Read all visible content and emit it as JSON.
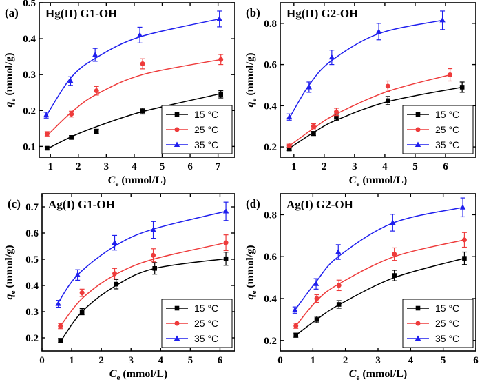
{
  "chart_data": [
    {
      "type": "scatter",
      "panel_label": "(a)",
      "title": "Hg(II) G1-OH",
      "xlabel_main": "C",
      "xlabel_sub": "e",
      "xlabel_unit": " (mmol/L)",
      "ylabel_main": "q",
      "ylabel_sub": "e",
      "ylabel_unit": " (mmol/g)",
      "xlim": [
        0.6,
        7.6
      ],
      "ylim": [
        0.07,
        0.5
      ],
      "xticks": [
        1,
        2,
        3,
        4,
        5,
        6,
        7
      ],
      "yticks": [
        0.1,
        0.2,
        0.3,
        0.4,
        0.5
      ],
      "series": [
        {
          "name": "15 °C",
          "color": "#000000",
          "marker": "square",
          "x": [
            0.88,
            1.75,
            2.65,
            4.3,
            7.1
          ],
          "y": [
            0.095,
            0.125,
            0.142,
            0.198,
            0.245
          ],
          "err": [
            0.004,
            0.005,
            0.006,
            0.008,
            0.01
          ],
          "fit": [
            0.093,
            0.127,
            0.155,
            0.197,
            0.247
          ]
        },
        {
          "name": "25 °C",
          "color": "#ee3b3b",
          "marker": "circle",
          "x": [
            0.88,
            1.75,
            2.65,
            4.3,
            7.1
          ],
          "y": [
            0.135,
            0.19,
            0.255,
            0.33,
            0.342
          ],
          "err": [
            0.006,
            0.008,
            0.012,
            0.014,
            0.014
          ],
          "fit": [
            0.13,
            0.195,
            0.245,
            0.3,
            0.342
          ]
        },
        {
          "name": "35 °C",
          "color": "#1f1fee",
          "marker": "triangle",
          "x": [
            0.85,
            1.72,
            2.6,
            4.2,
            7.05
          ],
          "y": [
            0.187,
            0.282,
            0.355,
            0.41,
            0.455
          ],
          "err": [
            0.008,
            0.012,
            0.018,
            0.022,
            0.022
          ],
          "fit": [
            0.185,
            0.29,
            0.345,
            0.405,
            0.455
          ]
        }
      ]
    },
    {
      "type": "scatter",
      "panel_label": "(b)",
      "title": "Hg(II) G2-OH",
      "xlabel_main": "C",
      "xlabel_sub": "e",
      "xlabel_unit": " (mmol/L)",
      "ylabel_main": "q",
      "ylabel_sub": "e",
      "ylabel_unit": " (mmol/g)",
      "xlim": [
        0.55,
        7.0
      ],
      "ylim": [
        0.15,
        0.9
      ],
      "xticks": [
        1,
        2,
        3,
        4,
        5,
        6
      ],
      "yticks": [
        0.2,
        0.4,
        0.6,
        0.8
      ],
      "series": [
        {
          "name": "15 °C",
          "color": "#000000",
          "marker": "square",
          "x": [
            0.85,
            1.65,
            2.4,
            4.1,
            6.55
          ],
          "y": [
            0.19,
            0.265,
            0.345,
            0.425,
            0.49
          ],
          "err": [
            0.008,
            0.01,
            0.015,
            0.02,
            0.025
          ],
          "fit": [
            0.193,
            0.27,
            0.33,
            0.42,
            0.49
          ]
        },
        {
          "name": "25 °C",
          "color": "#ee3b3b",
          "marker": "circle",
          "x": [
            0.85,
            1.65,
            2.4,
            4.1,
            6.15
          ],
          "y": [
            0.205,
            0.3,
            0.37,
            0.495,
            0.55
          ],
          "err": [
            0.008,
            0.012,
            0.018,
            0.025,
            0.03
          ],
          "fit": [
            0.205,
            0.29,
            0.36,
            0.47,
            0.55
          ]
        },
        {
          "name": "35 °C",
          "color": "#1f1fee",
          "marker": "triangle",
          "x": [
            0.85,
            1.5,
            2.25,
            3.8,
            5.9
          ],
          "y": [
            0.345,
            0.49,
            0.635,
            0.76,
            0.815
          ],
          "err": [
            0.015,
            0.025,
            0.035,
            0.04,
            0.045
          ],
          "fit": [
            0.34,
            0.5,
            0.62,
            0.75,
            0.815
          ]
        }
      ]
    },
    {
      "type": "scatter",
      "panel_label": "(c)",
      "title": "Ag(I) G1-OH",
      "xlabel_main": "C",
      "xlabel_sub": "e",
      "xlabel_unit": " (mmol/L)",
      "ylabel_main": "q",
      "ylabel_sub": "e",
      "ylabel_unit": " (mmol/g)",
      "xlim": [
        0,
        6.5
      ],
      "ylim": [
        0.15,
        0.75
      ],
      "xticks": [
        0,
        1,
        2,
        3,
        4,
        5,
        6
      ],
      "yticks": [
        0.2,
        0.3,
        0.4,
        0.5,
        0.6,
        0.7
      ],
      "series": [
        {
          "name": "15 °C",
          "color": "#000000",
          "marker": "square",
          "x": [
            0.62,
            1.35,
            2.5,
            3.8,
            6.2
          ],
          "y": [
            0.19,
            0.3,
            0.405,
            0.465,
            0.502
          ],
          "err": [
            0.008,
            0.012,
            0.018,
            0.022,
            0.025
          ],
          "fit": [
            0.185,
            0.3,
            0.4,
            0.465,
            0.502
          ]
        },
        {
          "name": "25 °C",
          "color": "#ee3b3b",
          "marker": "circle",
          "x": [
            0.62,
            1.35,
            2.45,
            3.75,
            6.2
          ],
          "y": [
            0.245,
            0.372,
            0.445,
            0.515,
            0.563
          ],
          "err": [
            0.01,
            0.014,
            0.02,
            0.025,
            0.03
          ],
          "fit": [
            0.245,
            0.35,
            0.44,
            0.5,
            0.563
          ]
        },
        {
          "name": "35 °C",
          "color": "#1f1fee",
          "marker": "triangle",
          "x": [
            0.55,
            1.2,
            2.45,
            3.75,
            6.2
          ],
          "y": [
            0.33,
            0.44,
            0.563,
            0.612,
            0.683
          ],
          "err": [
            0.013,
            0.02,
            0.028,
            0.032,
            0.035
          ],
          "fit": [
            0.335,
            0.44,
            0.55,
            0.615,
            0.683
          ]
        }
      ]
    },
    {
      "type": "scatter",
      "panel_label": "(d)",
      "title": "Ag(I) G2-OH",
      "xlabel_main": "C",
      "xlabel_sub": "e",
      "xlabel_unit": " (mmol/L)",
      "ylabel_main": "q",
      "ylabel_sub": "e",
      "ylabel_unit": " (mmol/g)",
      "xlim": [
        0,
        6.0
      ],
      "ylim": [
        0.15,
        0.9
      ],
      "xticks": [
        0,
        1,
        2,
        3,
        4,
        5,
        6
      ],
      "yticks": [
        0.2,
        0.4,
        0.6,
        0.8
      ],
      "series": [
        {
          "name": "15 °C",
          "color": "#000000",
          "marker": "square",
          "x": [
            0.48,
            1.12,
            1.8,
            3.5,
            5.65
          ],
          "y": [
            0.225,
            0.3,
            0.372,
            0.51,
            0.592
          ],
          "err": [
            0.01,
            0.015,
            0.018,
            0.025,
            0.03
          ],
          "fit": [
            0.225,
            0.3,
            0.37,
            0.5,
            0.592
          ]
        },
        {
          "name": "25 °C",
          "color": "#ee3b3b",
          "marker": "circle",
          "x": [
            0.48,
            1.12,
            1.8,
            3.5,
            5.65
          ],
          "y": [
            0.27,
            0.4,
            0.463,
            0.612,
            0.68
          ],
          "err": [
            0.012,
            0.018,
            0.025,
            0.03,
            0.035
          ],
          "fit": [
            0.27,
            0.39,
            0.47,
            0.6,
            0.68
          ]
        },
        {
          "name": "35 °C",
          "color": "#1f1fee",
          "marker": "triangle",
          "x": [
            0.45,
            1.1,
            1.78,
            3.45,
            5.6
          ],
          "y": [
            0.345,
            0.47,
            0.622,
            0.762,
            0.835
          ],
          "err": [
            0.015,
            0.025,
            0.035,
            0.04,
            0.045
          ],
          "fit": [
            0.345,
            0.48,
            0.6,
            0.76,
            0.835
          ]
        }
      ]
    }
  ]
}
